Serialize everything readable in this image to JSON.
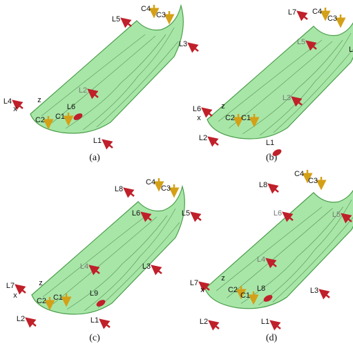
{
  "panels": [
    {
      "caption": "(a)",
      "labels": [
        "L5",
        "C4",
        "C3",
        "L3",
        "L2",
        "L4",
        "x",
        "z",
        "C2",
        "C1",
        "L6",
        "L1"
      ]
    },
    {
      "caption": "(b)",
      "labels": [
        "L7",
        "C4",
        "C3",
        "L5",
        "L",
        "L3",
        "L6",
        "x",
        "z",
        "C2",
        "C1",
        "L2",
        "L1"
      ]
    },
    {
      "caption": "(c)",
      "labels": [
        "L8",
        "C4",
        "C3",
        "L6",
        "L5",
        "L4",
        "L3",
        "L7",
        "x",
        "z",
        "C2",
        "C1",
        "L9",
        "L2",
        "L1"
      ]
    },
    {
      "caption": "(d)",
      "labels": [
        "L8",
        "C4",
        "C3",
        "L6",
        "L5",
        "L4",
        "L7",
        "x",
        "z",
        "C2",
        "C1",
        "L8",
        "L3",
        "L2",
        "L1"
      ]
    }
  ]
}
